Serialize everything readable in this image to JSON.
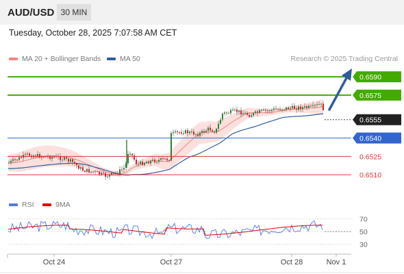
{
  "header": {
    "pair": "AUD/USD",
    "timeframe": "30 MIN"
  },
  "datetime": "Tuesday, October 28, 2025 7:07:58 AM CET",
  "legend": {
    "ma20_label": "MA 20 + Bollinger Bands",
    "ma20_color": "#f4837f",
    "ma50_label": "MA 50",
    "ma50_color": "#2e5d9f",
    "rsi_label": "RSI",
    "rsi_color": "#5577dd",
    "rsi_ma_label": "9MA",
    "rsi_ma_color": "#dd0000"
  },
  "credit": "Research © 2025 Trading Central",
  "chart_data": {
    "type": "candlestick",
    "x_labels": [
      "Oct 24",
      "Oct 27",
      "Oct 28",
      "Nov 1"
    ],
    "price_range": [
      0.6495,
      0.6599
    ],
    "levels": [
      {
        "value": 0.659,
        "label": "0.6590",
        "kind": "resistance",
        "color": "#44aa00"
      },
      {
        "value": 0.6575,
        "label": "0.6575",
        "kind": "resistance",
        "color": "#44aa00"
      },
      {
        "value": 0.6555,
        "label": "0.6555",
        "kind": "pivot",
        "color": "#222222"
      },
      {
        "value": 0.654,
        "label": "0.6540",
        "kind": "support",
        "color": "#3366cc"
      },
      {
        "value": 0.6525,
        "label": "0.6525",
        "kind": "support",
        "color": "#dd3333"
      },
      {
        "value": 0.651,
        "label": "0.6510",
        "kind": "support",
        "color": "#dd3333"
      }
    ],
    "current_price": 0.6555,
    "target": 0.659,
    "bias": "bullish",
    "rsi": {
      "range": [
        20,
        80
      ],
      "levels": [
        70,
        50,
        30
      ],
      "last": 50
    }
  }
}
